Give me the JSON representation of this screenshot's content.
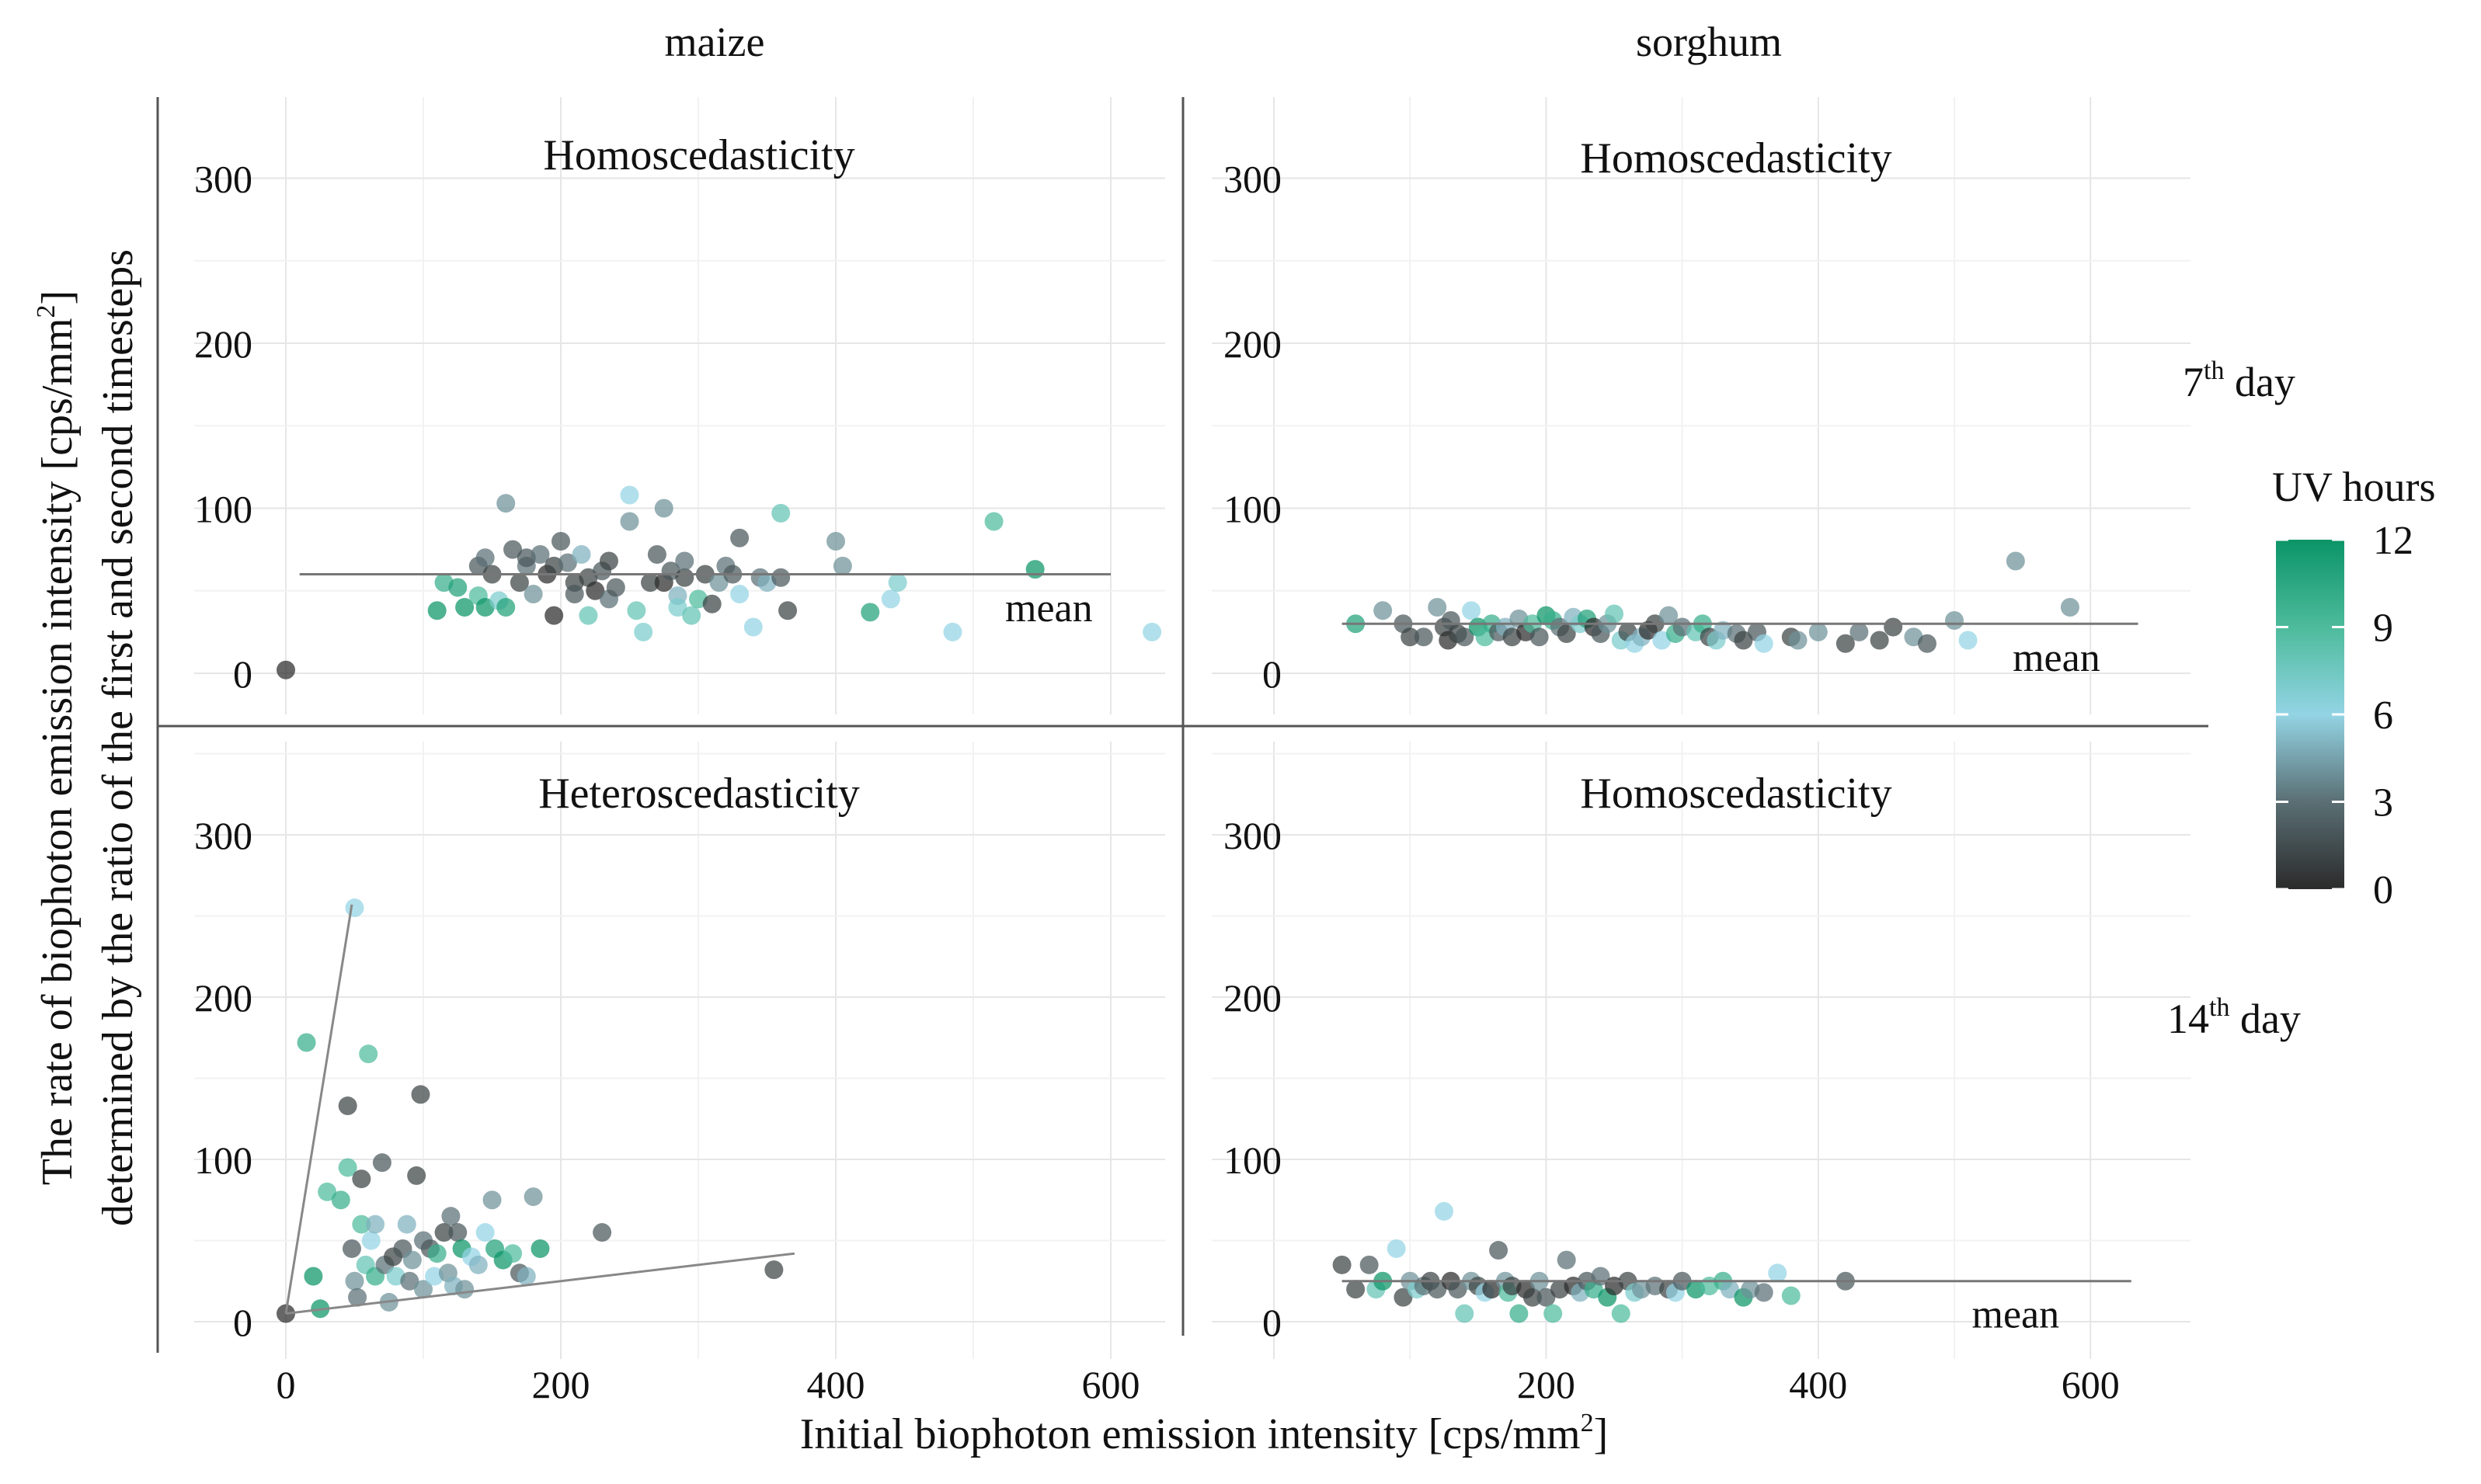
{
  "labels": {
    "x_axis": "Initial biophoton emission intensity [cps/mm",
    "x_axis_sup": "2",
    "x_axis_end": "]",
    "y_axis_line1": "The rate of biophoton emission intensity [cps/mm",
    "y_axis_line1_sup": "2",
    "y_axis_line1_end": "]",
    "y_axis_line2": "determined by the ratio of the first and second timesteps",
    "col_maize": "maize",
    "col_sorghum": "sorghum",
    "row_7_num": "7",
    "row_7_sup": "th",
    "row_7_word": " day",
    "row_14_num": "14",
    "row_14_sup": "th",
    "row_14_word": " day",
    "legend_title": "UV hours",
    "mean": "mean"
  },
  "legend": {
    "ticks": [
      "12",
      "9",
      "6",
      "3",
      "0"
    ],
    "stops": [
      {
        "v": 0,
        "color": "#2b2b2b"
      },
      {
        "v": 3,
        "color": "#5a6f74"
      },
      {
        "v": 6,
        "color": "#93d4e4"
      },
      {
        "v": 9,
        "color": "#4dbb9c"
      },
      {
        "v": 12,
        "color": "#0b9467"
      }
    ]
  },
  "chart_data": [
    {
      "type": "scatter",
      "panel": "maize-7th",
      "title": "Homoscedasticity",
      "xlabel": "Initial biophoton emission intensity [cps/mm2]",
      "ylabel": "The rate of biophoton emission intensity [cps/mm2] determined by the ratio of the first and second timesteps",
      "xlim": [
        -20,
        660
      ],
      "ylim": [
        -25,
        355
      ],
      "xticks": [
        "0",
        "200",
        "400",
        "600"
      ],
      "yticks": [
        "0",
        "100",
        "200",
        "300"
      ],
      "mean_line": {
        "x0": 10,
        "x1": 600,
        "y": 60
      },
      "mean_label_pos": [
        555,
        40
      ],
      "points": [
        [
          0,
          2,
          0
        ],
        [
          110,
          38,
          12
        ],
        [
          115,
          55,
          10
        ],
        [
          125,
          52,
          11
        ],
        [
          130,
          40,
          12
        ],
        [
          140,
          47,
          9
        ],
        [
          145,
          40,
          12
        ],
        [
          155,
          44,
          7
        ],
        [
          160,
          40,
          11
        ],
        [
          140,
          65,
          2
        ],
        [
          145,
          70,
          3
        ],
        [
          150,
          60,
          1
        ],
        [
          160,
          103,
          4
        ],
        [
          165,
          75,
          2
        ],
        [
          170,
          55,
          1
        ],
        [
          175,
          65,
          3
        ],
        [
          180,
          48,
          4
        ],
        [
          175,
          70,
          2
        ],
        [
          185,
          72,
          3
        ],
        [
          190,
          60,
          0
        ],
        [
          195,
          65,
          1
        ],
        [
          200,
          80,
          2
        ],
        [
          195,
          35,
          0
        ],
        [
          205,
          67,
          3
        ],
        [
          210,
          55,
          1
        ],
        [
          210,
          48,
          2
        ],
        [
          215,
          72,
          5
        ],
        [
          220,
          58,
          1
        ],
        [
          225,
          50,
          0
        ],
        [
          230,
          62,
          2
        ],
        [
          235,
          68,
          1
        ],
        [
          220,
          35,
          8
        ],
        [
          235,
          45,
          3
        ],
        [
          240,
          52,
          2
        ],
        [
          250,
          92,
          4
        ],
        [
          250,
          108,
          6
        ],
        [
          255,
          38,
          8
        ],
        [
          260,
          25,
          7
        ],
        [
          265,
          55,
          1
        ],
        [
          270,
          72,
          2
        ],
        [
          275,
          100,
          4
        ],
        [
          275,
          55,
          0
        ],
        [
          280,
          62,
          2
        ],
        [
          285,
          47,
          5
        ],
        [
          285,
          40,
          7
        ],
        [
          290,
          58,
          1
        ],
        [
          290,
          68,
          3
        ],
        [
          295,
          35,
          8
        ],
        [
          300,
          45,
          9
        ],
        [
          305,
          60,
          1
        ],
        [
          310,
          42,
          1
        ],
        [
          315,
          55,
          4
        ],
        [
          320,
          65,
          3
        ],
        [
          325,
          60,
          2
        ],
        [
          330,
          82,
          2
        ],
        [
          330,
          48,
          6
        ],
        [
          340,
          28,
          6
        ],
        [
          345,
          58,
          3
        ],
        [
          350,
          55,
          5
        ],
        [
          360,
          97,
          8
        ],
        [
          360,
          58,
          2
        ],
        [
          365,
          38,
          1
        ],
        [
          400,
          80,
          4
        ],
        [
          405,
          65,
          4
        ],
        [
          425,
          37,
          11
        ],
        [
          440,
          45,
          6
        ],
        [
          445,
          55,
          7
        ],
        [
          485,
          25,
          6
        ],
        [
          515,
          92,
          9
        ],
        [
          545,
          63,
          12
        ],
        [
          630,
          25,
          6
        ]
      ]
    },
    {
      "type": "scatter",
      "panel": "sorghum-7th",
      "title": "Homoscedasticity",
      "xlim": [
        -20,
        660
      ],
      "ylim": [
        -25,
        355
      ],
      "xticks": [
        "200",
        "400",
        "600"
      ],
      "yticks": [
        "0",
        "100",
        "200",
        "300"
      ],
      "mean_line": {
        "x0": 50,
        "x1": 635,
        "y": 30
      },
      "mean_label_pos": [
        575,
        10
      ],
      "points": [
        [
          60,
          30,
          11
        ],
        [
          80,
          38,
          4
        ],
        [
          95,
          30,
          2
        ],
        [
          100,
          22,
          1
        ],
        [
          110,
          22,
          2
        ],
        [
          120,
          40,
          4
        ],
        [
          125,
          28,
          1
        ],
        [
          128,
          20,
          0
        ],
        [
          130,
          32,
          2
        ],
        [
          135,
          24,
          1
        ],
        [
          140,
          22,
          2
        ],
        [
          145,
          38,
          6
        ],
        [
          150,
          28,
          12
        ],
        [
          155,
          22,
          9
        ],
        [
          160,
          30,
          10
        ],
        [
          165,
          25,
          2
        ],
        [
          170,
          28,
          5
        ],
        [
          175,
          22,
          1
        ],
        [
          180,
          33,
          4
        ],
        [
          185,
          25,
          0
        ],
        [
          190,
          30,
          9
        ],
        [
          195,
          22,
          2
        ],
        [
          200,
          35,
          12
        ],
        [
          205,
          32,
          10
        ],
        [
          210,
          28,
          3
        ],
        [
          215,
          24,
          1
        ],
        [
          220,
          34,
          5
        ],
        [
          225,
          30,
          7
        ],
        [
          230,
          33,
          11
        ],
        [
          235,
          28,
          0
        ],
        [
          240,
          24,
          2
        ],
        [
          245,
          30,
          4
        ],
        [
          250,
          36,
          8
        ],
        [
          255,
          20,
          7
        ],
        [
          260,
          25,
          1
        ],
        [
          265,
          18,
          6
        ],
        [
          270,
          22,
          5
        ],
        [
          275,
          26,
          0
        ],
        [
          280,
          30,
          1
        ],
        [
          285,
          20,
          6
        ],
        [
          290,
          35,
          4
        ],
        [
          295,
          24,
          10
        ],
        [
          300,
          28,
          3
        ],
        [
          310,
          25,
          8
        ],
        [
          315,
          30,
          10
        ],
        [
          320,
          22,
          1
        ],
        [
          325,
          20,
          7
        ],
        [
          330,
          26,
          5
        ],
        [
          340,
          24,
          3
        ],
        [
          345,
          20,
          1
        ],
        [
          355,
          25,
          2
        ],
        [
          360,
          18,
          6
        ],
        [
          380,
          22,
          1
        ],
        [
          385,
          20,
          4
        ],
        [
          400,
          25,
          4
        ],
        [
          420,
          18,
          1
        ],
        [
          430,
          25,
          3
        ],
        [
          445,
          20,
          1
        ],
        [
          455,
          28,
          1
        ],
        [
          470,
          22,
          4
        ],
        [
          480,
          18,
          2
        ],
        [
          500,
          32,
          4
        ],
        [
          510,
          20,
          6
        ],
        [
          545,
          68,
          4
        ],
        [
          585,
          40,
          4
        ]
      ]
    },
    {
      "type": "scatter",
      "panel": "maize-14th",
      "title": "Heteroscedasticity",
      "xlim": [
        -20,
        660
      ],
      "ylim": [
        -25,
        355
      ],
      "xticks": [
        "0",
        "200",
        "400",
        "600"
      ],
      "yticks": [
        "0",
        "100",
        "200",
        "300"
      ],
      "fan_lines": [
        {
          "x0": 0,
          "y0": 5,
          "x1": 48,
          "y1": 257
        },
        {
          "x0": 0,
          "y0": 5,
          "x1": 370,
          "y1": 42
        }
      ],
      "points": [
        [
          0,
          5,
          0
        ],
        [
          15,
          172,
          10
        ],
        [
          20,
          28,
          12
        ],
        [
          25,
          8,
          12
        ],
        [
          30,
          80,
          9
        ],
        [
          40,
          75,
          10
        ],
        [
          45,
          133,
          1
        ],
        [
          45,
          95,
          9
        ],
        [
          48,
          45,
          2
        ],
        [
          50,
          255,
          6
        ],
        [
          50,
          25,
          4
        ],
        [
          52,
          15,
          3
        ],
        [
          55,
          88,
          1
        ],
        [
          55,
          60,
          9
        ],
        [
          58,
          35,
          8
        ],
        [
          60,
          165,
          9
        ],
        [
          62,
          50,
          6
        ],
        [
          65,
          28,
          10
        ],
        [
          65,
          60,
          5
        ],
        [
          70,
          98,
          2
        ],
        [
          72,
          35,
          3
        ],
        [
          75,
          12,
          4
        ],
        [
          78,
          40,
          1
        ],
        [
          80,
          28,
          7
        ],
        [
          85,
          45,
          2
        ],
        [
          88,
          60,
          5
        ],
        [
          90,
          25,
          3
        ],
        [
          92,
          38,
          4
        ],
        [
          95,
          90,
          1
        ],
        [
          98,
          140,
          1
        ],
        [
          100,
          50,
          3
        ],
        [
          100,
          20,
          4
        ],
        [
          105,
          45,
          2
        ],
        [
          108,
          28,
          6
        ],
        [
          110,
          42,
          10
        ],
        [
          115,
          55,
          1
        ],
        [
          118,
          30,
          4
        ],
        [
          120,
          65,
          3
        ],
        [
          122,
          22,
          5
        ],
        [
          125,
          55,
          2
        ],
        [
          128,
          45,
          12
        ],
        [
          130,
          20,
          4
        ],
        [
          135,
          40,
          6
        ],
        [
          140,
          35,
          5
        ],
        [
          145,
          55,
          6
        ],
        [
          150,
          75,
          4
        ],
        [
          152,
          45,
          11
        ],
        [
          158,
          38,
          12
        ],
        [
          165,
          42,
          9
        ],
        [
          170,
          30,
          2
        ],
        [
          175,
          28,
          5
        ],
        [
          180,
          77,
          4
        ],
        [
          185,
          45,
          12
        ],
        [
          230,
          55,
          2
        ],
        [
          355,
          32,
          1
        ]
      ]
    },
    {
      "type": "scatter",
      "panel": "sorghum-14th",
      "title": "Homoscedasticity",
      "xlim": [
        -20,
        660
      ],
      "ylim": [
        -25,
        355
      ],
      "xticks": [
        "200",
        "400",
        "600"
      ],
      "yticks": [
        "0",
        "100",
        "200",
        "300"
      ],
      "mean_line": {
        "x0": 50,
        "x1": 630,
        "y": 25
      },
      "mean_label_pos": [
        545,
        5
      ],
      "points": [
        [
          50,
          35,
          1
        ],
        [
          60,
          20,
          1
        ],
        [
          70,
          35,
          2
        ],
        [
          75,
          20,
          8
        ],
        [
          80,
          25,
          12
        ],
        [
          90,
          45,
          6
        ],
        [
          95,
          15,
          1
        ],
        [
          100,
          25,
          4
        ],
        [
          105,
          20,
          7
        ],
        [
          110,
          22,
          3
        ],
        [
          115,
          25,
          1
        ],
        [
          120,
          20,
          2
        ],
        [
          125,
          68,
          6
        ],
        [
          130,
          25,
          0
        ],
        [
          135,
          20,
          2
        ],
        [
          140,
          5,
          8
        ],
        [
          145,
          25,
          4
        ],
        [
          150,
          22,
          1
        ],
        [
          155,
          18,
          6
        ],
        [
          160,
          20,
          0
        ],
        [
          165,
          44,
          2
        ],
        [
          170,
          25,
          4
        ],
        [
          172,
          18,
          9
        ],
        [
          175,
          22,
          1
        ],
        [
          180,
          5,
          10
        ],
        [
          185,
          20,
          0
        ],
        [
          190,
          15,
          1
        ],
        [
          195,
          25,
          4
        ],
        [
          200,
          15,
          2
        ],
        [
          205,
          5,
          9
        ],
        [
          210,
          20,
          1
        ],
        [
          215,
          38,
          3
        ],
        [
          220,
          22,
          0
        ],
        [
          225,
          18,
          5
        ],
        [
          230,
          25,
          2
        ],
        [
          235,
          20,
          10
        ],
        [
          240,
          28,
          3
        ],
        [
          245,
          15,
          12
        ],
        [
          250,
          22,
          0
        ],
        [
          255,
          5,
          9
        ],
        [
          260,
          25,
          1
        ],
        [
          265,
          18,
          7
        ],
        [
          270,
          20,
          4
        ],
        [
          280,
          22,
          3
        ],
        [
          290,
          20,
          1
        ],
        [
          295,
          18,
          6
        ],
        [
          300,
          25,
          2
        ],
        [
          310,
          20,
          12
        ],
        [
          320,
          22,
          9
        ],
        [
          330,
          25,
          10
        ],
        [
          335,
          20,
          5
        ],
        [
          345,
          15,
          12
        ],
        [
          350,
          20,
          4
        ],
        [
          360,
          18,
          3
        ],
        [
          370,
          30,
          6
        ],
        [
          380,
          16,
          9
        ],
        [
          420,
          25,
          2
        ]
      ]
    }
  ]
}
